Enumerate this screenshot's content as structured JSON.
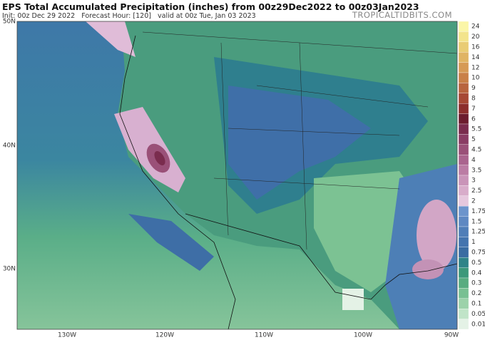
{
  "header": {
    "title": "EPS Total Accumulated Precipitation (inches) from 00z29Dec2022 to 00z03Jan2023",
    "subtitle": "Init: 00z Dec 29 2022   Forecast Hour: [120]   valid at 00z Tue, Jan 03 2023",
    "site": "TROPICALTIDBITS.COM"
  },
  "map": {
    "lat_labels": [
      "50N",
      "40N",
      "30N"
    ],
    "lon_labels": [
      "130W",
      "120W",
      "110W",
      "100W",
      "90W"
    ]
  },
  "colorbar": {
    "levels": [
      {
        "label": "24",
        "color": "#fbf6a8"
      },
      {
        "label": "20",
        "color": "#f3e48c"
      },
      {
        "label": "16",
        "color": "#e9cc74"
      },
      {
        "label": "14",
        "color": "#e0b464"
      },
      {
        "label": "12",
        "color": "#d69a56"
      },
      {
        "label": "10",
        "color": "#c98048"
      },
      {
        "label": "9",
        "color": "#b8643e"
      },
      {
        "label": "8",
        "color": "#a64834"
      },
      {
        "label": "7",
        "color": "#8c2e2c"
      },
      {
        "label": "6",
        "color": "#6c1c2e"
      },
      {
        "label": "5.5",
        "color": "#7a2c4e"
      },
      {
        "label": "5",
        "color": "#8a3c64"
      },
      {
        "label": "4.5",
        "color": "#9a5078"
      },
      {
        "label": "4",
        "color": "#aa648e"
      },
      {
        "label": "3.5",
        "color": "#bb7ca4"
      },
      {
        "label": "3",
        "color": "#c994b8"
      },
      {
        "label": "2.5",
        "color": "#d8acca"
      },
      {
        "label": "2",
        "color": "#e6c8de"
      },
      {
        "label": "1.75",
        "color": "#6c94cc"
      },
      {
        "label": "1.5",
        "color": "#5e88c2"
      },
      {
        "label": "1.25",
        "color": "#507eb8"
      },
      {
        "label": "1",
        "color": "#4474ae"
      },
      {
        "label": "0.75",
        "color": "#3a6ca2"
      },
      {
        "label": "0.5",
        "color": "#2f8488"
      },
      {
        "label": "0.4",
        "color": "#3c987a"
      },
      {
        "label": "0.3",
        "color": "#58ac80"
      },
      {
        "label": "0.2",
        "color": "#78c092"
      },
      {
        "label": "0.1",
        "color": "#9cd2aa"
      },
      {
        "label": "0.05",
        "color": "#c0e4c8"
      },
      {
        "label": "0.01",
        "color": "#e4f2e6"
      }
    ]
  }
}
